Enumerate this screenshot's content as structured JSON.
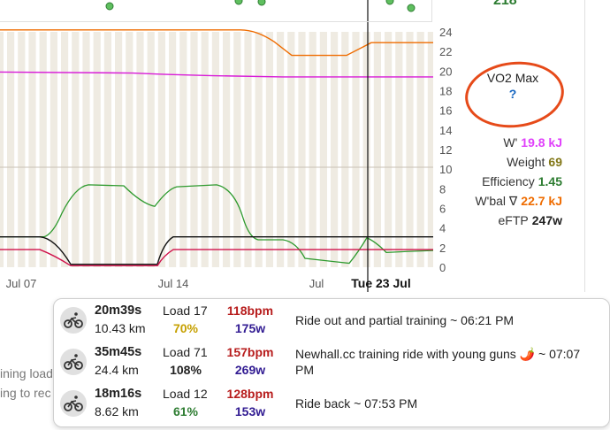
{
  "top_partial_value": "218",
  "axis": {
    "right_ticks": [
      "24",
      "22",
      "20",
      "18",
      "16",
      "14",
      "12",
      "10",
      "8",
      "6",
      "4",
      "2",
      "0"
    ],
    "x_ticks": [
      {
        "label": "Jul 07",
        "strong": false
      },
      {
        "label": "Jul 14",
        "strong": false
      },
      {
        "label": "Jul",
        "strong": false
      },
      {
        "label": "Tue 23 Jul",
        "strong": true
      }
    ]
  },
  "vo2max": {
    "label": "VO2 Max",
    "value": "?"
  },
  "stats": [
    {
      "label": "W'",
      "value": "19.8 kJ",
      "color": "#e040fb"
    },
    {
      "label": "Weight",
      "value": "69",
      "color": "#827717"
    },
    {
      "label": "Efficiency",
      "value": "1.45",
      "color": "#2e7d32"
    },
    {
      "label": "W'bal ∇",
      "value": "22.7 kJ",
      "color": "#ef6c00"
    },
    {
      "label": "eFTP",
      "value": "247w",
      "color": "#212121"
    }
  ],
  "background_text": [
    "ining load",
    "ing to rec"
  ],
  "activities": [
    {
      "time": "20m39s",
      "distance": "10.43 km",
      "load": "Load 17",
      "pct": "70%",
      "pct_color": "#c6a000",
      "hr": "118bpm",
      "watts": "175w",
      "name": "Ride out and partial training ~ 06:21 PM"
    },
    {
      "time": "35m45s",
      "distance": "24.4 km",
      "load": "Load 71",
      "pct": "108%",
      "pct_color": "#212121",
      "hr": "157bpm",
      "watts": "269w",
      "name": "Newhall.cc training ride with young guns 🌶️ ~ 07:07 PM"
    },
    {
      "time": "18m16s",
      "distance": "8.62 km",
      "load": "Load 12",
      "pct": "61%",
      "pct_color": "#2e7d32",
      "hr": "128bpm",
      "watts": "153w",
      "name": "Ride back ~ 07:53 PM"
    }
  ],
  "colors": {
    "orange": "#ef6c00",
    "magenta": "#d81bd8",
    "green": "#2e9a2e",
    "black": "#111111",
    "crimson": "#d0104a"
  }
}
